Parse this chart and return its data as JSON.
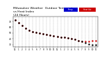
{
  "title": "Milwaukee Weather  Outdoor Temperature\nvs Heat Index\n(24 Hours)",
  "title_fontsize": 3.2,
  "background_color": "#ffffff",
  "grid_color": "#aaaaaa",
  "temp_color": "#000000",
  "heat_index_color": "#cc0000",
  "legend_temp_color": "#0000cc",
  "legend_heat_color": "#cc0000",
  "legend_temp_label": "Temp",
  "legend_heat_label": "Heat Idx",
  "x_hours": [
    0,
    1,
    2,
    3,
    4,
    5,
    6,
    7,
    8,
    9,
    10,
    11,
    12,
    13,
    14,
    15,
    16,
    17,
    18,
    19,
    20,
    21,
    22,
    23
  ],
  "temp_values": [
    72,
    68,
    63,
    58,
    54,
    52,
    51,
    50,
    48,
    47,
    46,
    45,
    44,
    43,
    42,
    41,
    40,
    39,
    37,
    35,
    33,
    31,
    30,
    29
  ],
  "heat_offset": [
    0,
    0,
    0,
    0,
    0,
    0,
    0,
    0,
    0,
    0,
    0,
    0,
    0,
    0,
    0,
    0,
    0,
    0,
    0,
    0,
    2,
    4,
    6,
    7
  ],
  "ylim": [
    26,
    78
  ],
  "yticks": [
    30,
    40,
    50,
    60,
    70
  ],
  "xtick_labels": [
    "12",
    "1",
    "2",
    "3",
    "4",
    "5",
    "6",
    "7",
    "8",
    "9",
    "10",
    "11",
    "12",
    "1",
    "2",
    "3",
    "4",
    "5",
    "6",
    "7",
    "8",
    "9",
    "10",
    "11"
  ],
  "marker_size": 1.5
}
